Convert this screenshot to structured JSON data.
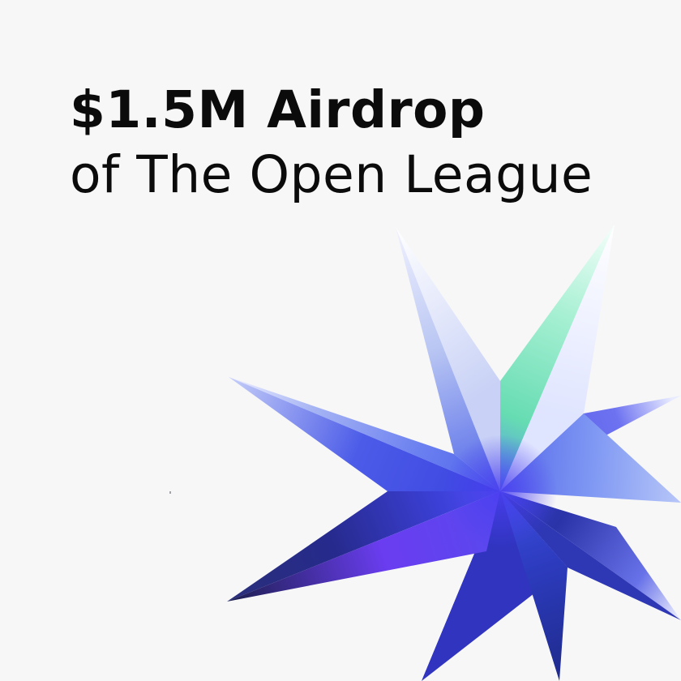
{
  "headline": {
    "line1": "$1.5M Airdrop",
    "line2": "of The Open League"
  },
  "graphic": {
    "icon": "eight-point-star-icon",
    "colors": {
      "background": "#f7f7f7",
      "text": "#0b0b0b",
      "star_mint": "#6fe3b8",
      "star_pale": "#eef0ff",
      "star_sky": "#8fb6f5",
      "star_blue": "#3a3ee6",
      "star_violet": "#6b3cf0",
      "star_navy": "#1a1f6e"
    }
  }
}
